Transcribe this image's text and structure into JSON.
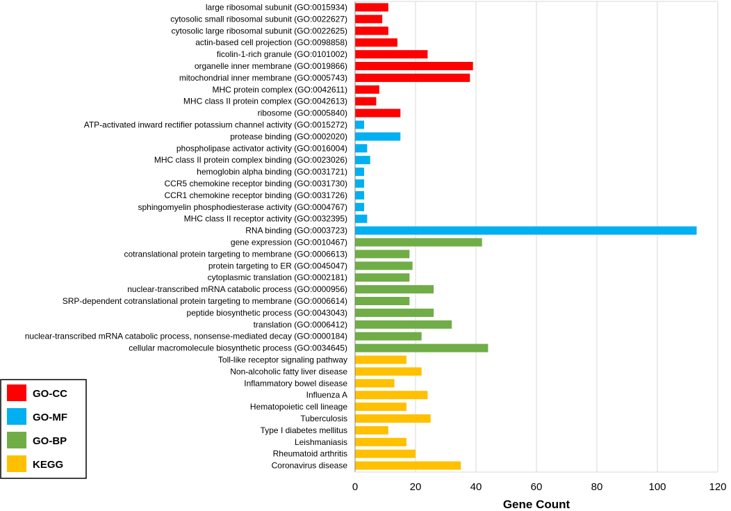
{
  "chart_data": {
    "type": "bar",
    "orientation": "horizontal",
    "title": "",
    "xlabel": "Gene Count",
    "ylabel": "",
    "xlim": [
      0,
      120
    ],
    "xticks": [
      0,
      20,
      40,
      60,
      80,
      100,
      120
    ],
    "grid": "vertical",
    "legend_position": "bottom-left",
    "legend": [
      {
        "key": "GO-CC",
        "label": "GO-CC",
        "color": "#ff0000"
      },
      {
        "key": "GO-MF",
        "label": "GO-MF",
        "color": "#00b0f0"
      },
      {
        "key": "GO-BP",
        "label": "GO-BP",
        "color": "#70ad47"
      },
      {
        "key": "KEGG",
        "label": "KEGG",
        "color": "#ffc000"
      }
    ],
    "bars": [
      {
        "label": "large ribosomal subunit (GO:0015934)",
        "value": 11,
        "group": "GO-CC"
      },
      {
        "label": "cytosolic small ribosomal subunit (GO:0022627)",
        "value": 9,
        "group": "GO-CC"
      },
      {
        "label": "cytosolic large ribosomal subunit (GO:0022625)",
        "value": 11,
        "group": "GO-CC"
      },
      {
        "label": "actin-based cell projection (GO:0098858)",
        "value": 14,
        "group": "GO-CC"
      },
      {
        "label": "ficolin-1-rich granule (GO:0101002)",
        "value": 24,
        "group": "GO-CC"
      },
      {
        "label": "organelle inner membrane (GO:0019866)",
        "value": 39,
        "group": "GO-CC"
      },
      {
        "label": "mitochondrial inner membrane (GO:0005743)",
        "value": 38,
        "group": "GO-CC"
      },
      {
        "label": "MHC protein complex (GO:0042611)",
        "value": 8,
        "group": "GO-CC"
      },
      {
        "label": "MHC class II protein complex (GO:0042613)",
        "value": 7,
        "group": "GO-CC"
      },
      {
        "label": "ribosome (GO:0005840)",
        "value": 15,
        "group": "GO-CC"
      },
      {
        "label": "ATP-activated inward rectifier potassium channel activity (GO:0015272)",
        "value": 3,
        "group": "GO-MF"
      },
      {
        "label": "protease binding (GO:0002020)",
        "value": 15,
        "group": "GO-MF"
      },
      {
        "label": "phospholipase activator activity (GO:0016004)",
        "value": 4,
        "group": "GO-MF"
      },
      {
        "label": "MHC class II protein complex binding (GO:0023026)",
        "value": 5,
        "group": "GO-MF"
      },
      {
        "label": "hemoglobin alpha binding (GO:0031721)",
        "value": 3,
        "group": "GO-MF"
      },
      {
        "label": "CCR5 chemokine receptor binding (GO:0031730)",
        "value": 3,
        "group": "GO-MF"
      },
      {
        "label": "CCR1 chemokine receptor binding (GO:0031726)",
        "value": 3,
        "group": "GO-MF"
      },
      {
        "label": "sphingomyelin phosphodiesterase activity (GO:0004767)",
        "value": 3,
        "group": "GO-MF"
      },
      {
        "label": "MHC class II receptor activity (GO:0032395)",
        "value": 4,
        "group": "GO-MF"
      },
      {
        "label": "RNA binding (GO:0003723)",
        "value": 113,
        "group": "GO-MF"
      },
      {
        "label": "gene expression (GO:0010467)",
        "value": 42,
        "group": "GO-BP"
      },
      {
        "label": "cotranslational protein targeting to membrane (GO:0006613)",
        "value": 18,
        "group": "GO-BP"
      },
      {
        "label": "protein targeting to ER (GO:0045047)",
        "value": 19,
        "group": "GO-BP"
      },
      {
        "label": "cytoplasmic translation (GO:0002181)",
        "value": 18,
        "group": "GO-BP"
      },
      {
        "label": "nuclear-transcribed mRNA catabolic process (GO:0000956)",
        "value": 26,
        "group": "GO-BP"
      },
      {
        "label": "SRP-dependent cotranslational protein targeting to membrane (GO:0006614)",
        "value": 18,
        "group": "GO-BP"
      },
      {
        "label": "peptide biosynthetic process (GO:0043043)",
        "value": 26,
        "group": "GO-BP"
      },
      {
        "label": "translation (GO:0006412)",
        "value": 32,
        "group": "GO-BP"
      },
      {
        "label": "nuclear-transcribed mRNA catabolic process, nonsense-mediated decay (GO:0000184)",
        "value": 22,
        "group": "GO-BP"
      },
      {
        "label": "cellular macromolecule biosynthetic process (GO:0034645)",
        "value": 44,
        "group": "GO-BP"
      },
      {
        "label": "Toll-like receptor signaling pathway",
        "value": 17,
        "group": "KEGG"
      },
      {
        "label": "Non-alcoholic fatty liver disease",
        "value": 22,
        "group": "KEGG"
      },
      {
        "label": "Inflammatory bowel disease",
        "value": 13,
        "group": "KEGG"
      },
      {
        "label": "Influenza A",
        "value": 24,
        "group": "KEGG"
      },
      {
        "label": "Hematopoietic cell lineage",
        "value": 17,
        "group": "KEGG"
      },
      {
        "label": "Tuberculosis",
        "value": 25,
        "group": "KEGG"
      },
      {
        "label": "Type I diabetes mellitus",
        "value": 11,
        "group": "KEGG"
      },
      {
        "label": "Leishmaniasis",
        "value": 17,
        "group": "KEGG"
      },
      {
        "label": "Rheumatoid arthritis",
        "value": 20,
        "group": "KEGG"
      },
      {
        "label": "Coronavirus disease",
        "value": 35,
        "group": "KEGG"
      }
    ]
  }
}
